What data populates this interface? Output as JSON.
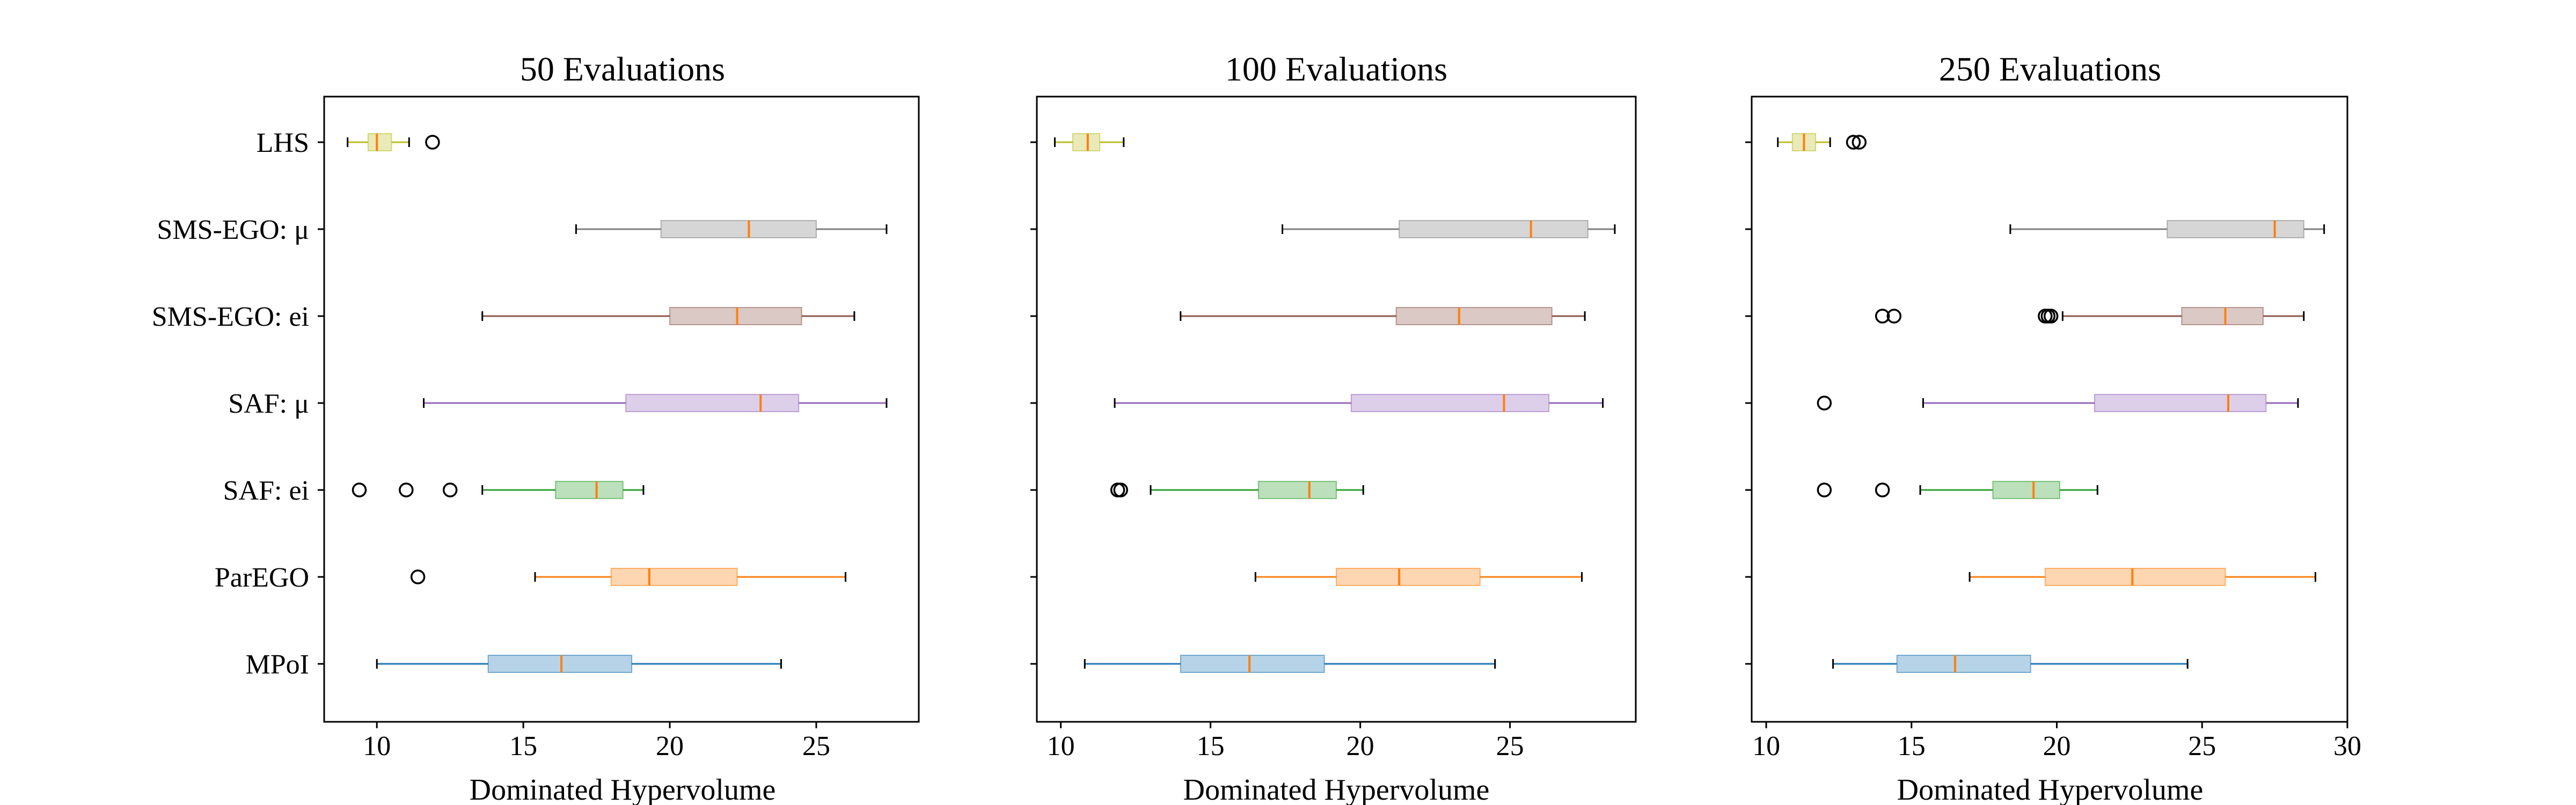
{
  "chart_data": {
    "type": "boxplot",
    "orientation": "horizontal",
    "categories": [
      "LHS",
      "SMS-EGO: μ",
      "SMS-EGO: ei",
      "SAF: μ",
      "SAF: ei",
      "ParEGO",
      "MPoI"
    ],
    "category_colors": {
      "LHS": "#bcbd22",
      "SMS-EGO: μ": "#7f7f7f",
      "SMS-EGO: ei": "#8c564b",
      "SAF: μ": "#9467bd",
      "SAF: ei": "#2ca02c",
      "ParEGO": "#ff7f0e",
      "MPoI": "#1f77b4"
    },
    "median_color": "#ff7f0e",
    "xlabel": "Dominated Hypervolume",
    "panels": [
      {
        "title": "50 Evaluations",
        "xlim": [
          8.2,
          28.5
        ],
        "xticks": [
          10,
          15,
          20,
          25
        ],
        "show_category_labels": true,
        "boxes": [
          {
            "label": "LHS",
            "whislo": 9.0,
            "q1": 9.7,
            "med": 10.0,
            "q3": 10.5,
            "whishi": 11.1,
            "fliers": [
              11.9
            ]
          },
          {
            "label": "SMS-EGO: μ",
            "whislo": 16.8,
            "q1": 19.7,
            "med": 22.7,
            "q3": 25.0,
            "whishi": 27.4,
            "fliers": []
          },
          {
            "label": "SMS-EGO: ei",
            "whislo": 13.6,
            "q1": 20.0,
            "med": 22.3,
            "q3": 24.5,
            "whishi": 26.3,
            "fliers": []
          },
          {
            "label": "SAF: μ",
            "whislo": 11.6,
            "q1": 18.5,
            "med": 23.1,
            "q3": 24.4,
            "whishi": 27.4,
            "fliers": []
          },
          {
            "label": "SAF: ei",
            "whislo": 13.6,
            "q1": 16.1,
            "med": 17.5,
            "q3": 18.4,
            "whishi": 19.1,
            "fliers": [
              9.4,
              11.0,
              12.5
            ]
          },
          {
            "label": "ParEGO",
            "whislo": 15.4,
            "q1": 18.0,
            "med": 19.3,
            "q3": 22.3,
            "whishi": 26.0,
            "fliers": [
              11.4
            ]
          },
          {
            "label": "MPoI",
            "whislo": 10.0,
            "q1": 13.8,
            "med": 16.3,
            "q3": 18.7,
            "whishi": 23.8,
            "fliers": []
          }
        ]
      },
      {
        "title": "100 Evaluations",
        "xlim": [
          9.2,
          29.2
        ],
        "xticks": [
          10,
          15,
          20,
          25
        ],
        "show_category_labels": false,
        "boxes": [
          {
            "label": "LHS",
            "whislo": 9.8,
            "q1": 10.4,
            "med": 10.9,
            "q3": 11.3,
            "whishi": 12.1,
            "fliers": []
          },
          {
            "label": "SMS-EGO: μ",
            "whislo": 17.4,
            "q1": 21.3,
            "med": 25.7,
            "q3": 27.6,
            "whishi": 28.5,
            "fliers": []
          },
          {
            "label": "SMS-EGO: ei",
            "whislo": 14.0,
            "q1": 21.2,
            "med": 23.3,
            "q3": 26.4,
            "whishi": 27.5,
            "fliers": []
          },
          {
            "label": "SAF: μ",
            "whislo": 11.8,
            "q1": 19.7,
            "med": 24.8,
            "q3": 26.3,
            "whishi": 28.1,
            "fliers": []
          },
          {
            "label": "SAF: ei",
            "whislo": 13.0,
            "q1": 16.6,
            "med": 18.3,
            "q3": 19.2,
            "whishi": 20.1,
            "fliers": [
              11.9,
              12.0
            ]
          },
          {
            "label": "ParEGO",
            "whislo": 16.5,
            "q1": 19.2,
            "med": 21.3,
            "q3": 24.0,
            "whishi": 27.4,
            "fliers": []
          },
          {
            "label": "MPoI",
            "whislo": 10.8,
            "q1": 14.0,
            "med": 16.3,
            "q3": 18.8,
            "whishi": 24.5,
            "fliers": []
          }
        ]
      },
      {
        "title": "250 Evaluations",
        "xlim": [
          9.5,
          30.0
        ],
        "xticks": [
          10,
          15,
          20,
          25,
          30
        ],
        "show_category_labels": false,
        "boxes": [
          {
            "label": "LHS",
            "whislo": 10.4,
            "q1": 10.9,
            "med": 11.3,
            "q3": 11.7,
            "whishi": 12.2,
            "fliers": [
              13.0,
              13.2
            ]
          },
          {
            "label": "SMS-EGO: μ",
            "whislo": 18.4,
            "q1": 23.8,
            "med": 27.5,
            "q3": 28.5,
            "whishi": 29.2,
            "fliers": []
          },
          {
            "label": "SMS-EGO: ei",
            "whislo": 20.2,
            "q1": 24.3,
            "med": 25.8,
            "q3": 27.1,
            "whishi": 28.5,
            "fliers": [
              14.0,
              14.4,
              19.6,
              19.7,
              19.8
            ]
          },
          {
            "label": "SAF: μ",
            "whislo": 15.4,
            "q1": 21.3,
            "med": 25.9,
            "q3": 27.2,
            "whishi": 28.3,
            "fliers": [
              12.0
            ]
          },
          {
            "label": "SAF: ei",
            "whislo": 15.3,
            "q1": 17.8,
            "med": 19.2,
            "q3": 20.1,
            "whishi": 21.4,
            "fliers": [
              12.0,
              14.0
            ]
          },
          {
            "label": "ParEGO",
            "whislo": 17.0,
            "q1": 19.6,
            "med": 22.6,
            "q3": 25.8,
            "whishi": 28.9,
            "fliers": []
          },
          {
            "label": "MPoI",
            "whislo": 12.3,
            "q1": 14.5,
            "med": 16.5,
            "q3": 19.1,
            "whishi": 24.5,
            "fliers": []
          }
        ]
      }
    ]
  }
}
